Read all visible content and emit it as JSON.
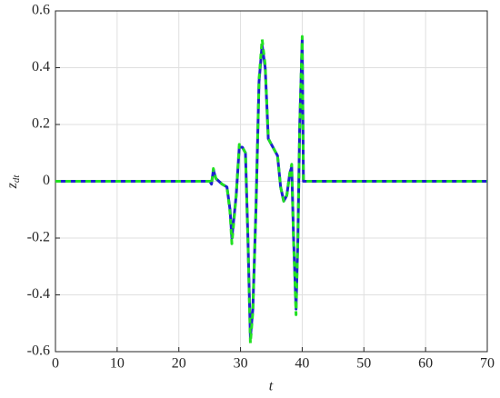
{
  "chart_data": {
    "type": "line",
    "xlabel": "t",
    "ylabel": "z",
    "ylabel_sub": "dt",
    "x": [
      0,
      25,
      25.3,
      25.6,
      26,
      27,
      27.8,
      28.3,
      28.6,
      29.3,
      29.8,
      30.3,
      30.8,
      31.2,
      31.6,
      32,
      32.5,
      33,
      33.5,
      34,
      34.5,
      35,
      35.5,
      36,
      36.5,
      37,
      37.5,
      38,
      38.3,
      38.6,
      39,
      39.3,
      39.6,
      40,
      40.2,
      70
    ],
    "series": [
      {
        "name": "blue",
        "color": "#1f1fd0",
        "dash": false,
        "values": [
          0,
          0,
          -0.01,
          0.04,
          0.01,
          -0.01,
          -0.02,
          -0.1,
          -0.2,
          -0.05,
          0.12,
          0.12,
          0.1,
          -0.2,
          -0.55,
          -0.45,
          -0.1,
          0.35,
          0.48,
          0.4,
          0.15,
          0.13,
          0.11,
          0.09,
          -0.02,
          -0.07,
          -0.05,
          0.03,
          0.05,
          -0.2,
          -0.45,
          -0.2,
          0.2,
          0.5,
          0,
          0
        ]
      },
      {
        "name": "green",
        "color": "#22e022",
        "dash": true,
        "values": [
          0,
          0,
          -0.01,
          0.045,
          0.01,
          -0.01,
          -0.02,
          -0.11,
          -0.22,
          -0.05,
          0.13,
          0.12,
          0.1,
          -0.21,
          -0.57,
          -0.46,
          -0.1,
          0.36,
          0.5,
          0.41,
          0.15,
          0.13,
          0.11,
          0.09,
          -0.02,
          -0.07,
          -0.05,
          0.03,
          0.06,
          -0.21,
          -0.47,
          -0.2,
          0.2,
          0.51,
          0,
          0
        ]
      }
    ],
    "xlim": [
      0,
      70
    ],
    "xticks": [
      0,
      10,
      20,
      30,
      40,
      50,
      60,
      70
    ],
    "ylim": [
      -0.6,
      0.6
    ],
    "yticks": [
      -0.6,
      -0.4,
      -0.2,
      0,
      0.2,
      0.4,
      0.6
    ],
    "grid": true
  }
}
